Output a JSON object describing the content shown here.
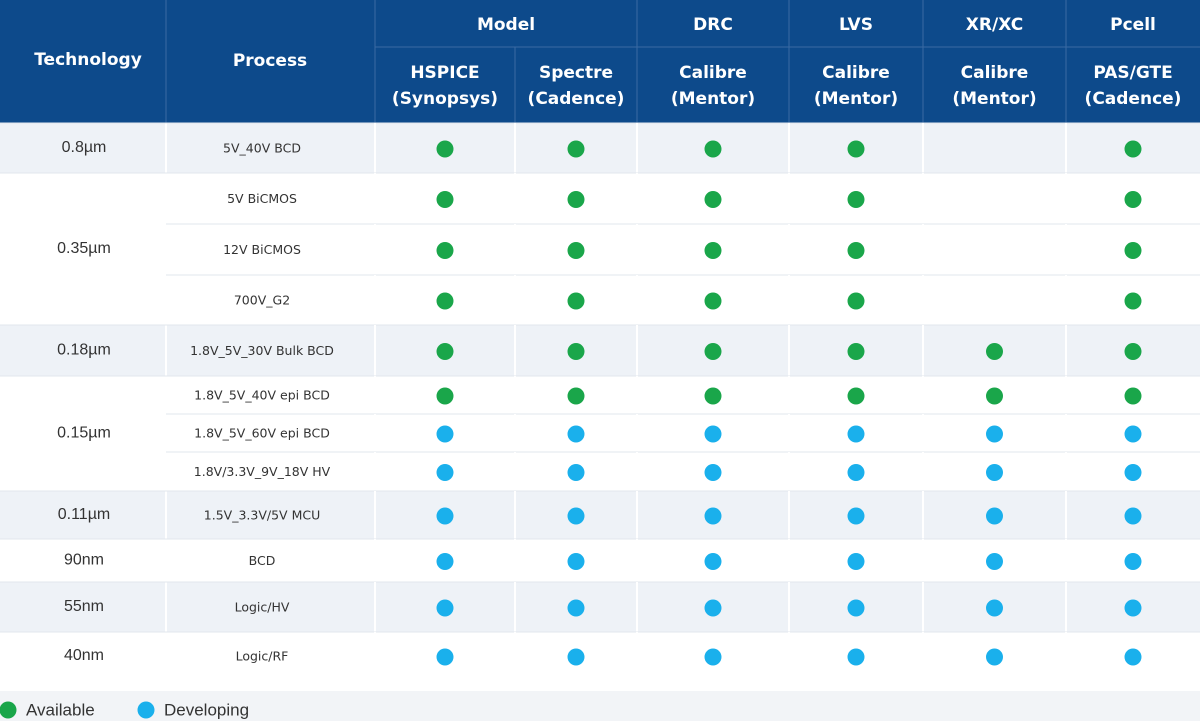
{
  "header": {
    "technology": "Technology",
    "process": "Process",
    "groups": [
      {
        "label": "Model",
        "tools": [
          [
            "HSPICE",
            "(Synopsys)"
          ],
          [
            "Spectre",
            "(Cadence)"
          ]
        ]
      },
      {
        "label": "DRC",
        "tools": [
          [
            "Calibre",
            "(Mentor)"
          ]
        ]
      },
      {
        "label": "LVS",
        "tools": [
          [
            "Calibre",
            "(Mentor)"
          ]
        ]
      },
      {
        "label": "XR/XC",
        "tools": [
          [
            "Calibre",
            "(Mentor)"
          ]
        ]
      },
      {
        "label": "Pcell",
        "tools": [
          [
            "PAS/GTE",
            "(Cadence)"
          ]
        ]
      }
    ]
  },
  "rows": [
    {
      "technology": "0.8µm",
      "processes": [
        {
          "name": "5V_40V BCD",
          "status": [
            0,
            0,
            0,
            0,
            null,
            0
          ]
        }
      ]
    },
    {
      "technology": "0.35µm",
      "processes": [
        {
          "name": "5V BiCMOS",
          "status": [
            0,
            0,
            0,
            0,
            null,
            0
          ]
        },
        {
          "name": "12V BiCMOS",
          "status": [
            0,
            0,
            0,
            0,
            null,
            0
          ]
        },
        {
          "name": "700V_G2",
          "status": [
            0,
            0,
            0,
            0,
            null,
            0
          ]
        }
      ]
    },
    {
      "technology": "0.18µm",
      "processes": [
        {
          "name": "1.8V_5V_30V Bulk BCD",
          "status": [
            0,
            0,
            0,
            0,
            0,
            0
          ]
        }
      ]
    },
    {
      "technology": "0.15µm",
      "processes": [
        {
          "name": "1.8V_5V_40V epi  BCD",
          "status": [
            0,
            0,
            0,
            0,
            0,
            0
          ]
        },
        {
          "name": "1.8V_5V_60V epi BCD",
          "status": [
            1,
            1,
            1,
            1,
            1,
            1
          ]
        },
        {
          "name": "1.8V/3.3V_9V_18V HV",
          "status": [
            1,
            1,
            1,
            1,
            1,
            1
          ]
        }
      ]
    },
    {
      "technology": "0.11µm",
      "processes": [
        {
          "name": "1.5V_3.3V/5V MCU",
          "status": [
            1,
            1,
            1,
            1,
            1,
            1
          ]
        }
      ]
    },
    {
      "technology": "90nm",
      "processes": [
        {
          "name": "BCD",
          "status": [
            1,
            1,
            1,
            1,
            1,
            1
          ]
        }
      ]
    },
    {
      "technology": "55nm",
      "processes": [
        {
          "name": "Logic/HV",
          "status": [
            1,
            1,
            1,
            1,
            1,
            1
          ]
        }
      ]
    },
    {
      "technology": "40nm",
      "processes": [
        {
          "name": "Logic/RF",
          "status": [
            1,
            1,
            1,
            1,
            1,
            1
          ]
        }
      ]
    }
  ],
  "legend": [
    {
      "label": "Available",
      "color": "#1aa64a"
    },
    {
      "label": "Developing",
      "color": "#1ab0ec"
    }
  ]
}
